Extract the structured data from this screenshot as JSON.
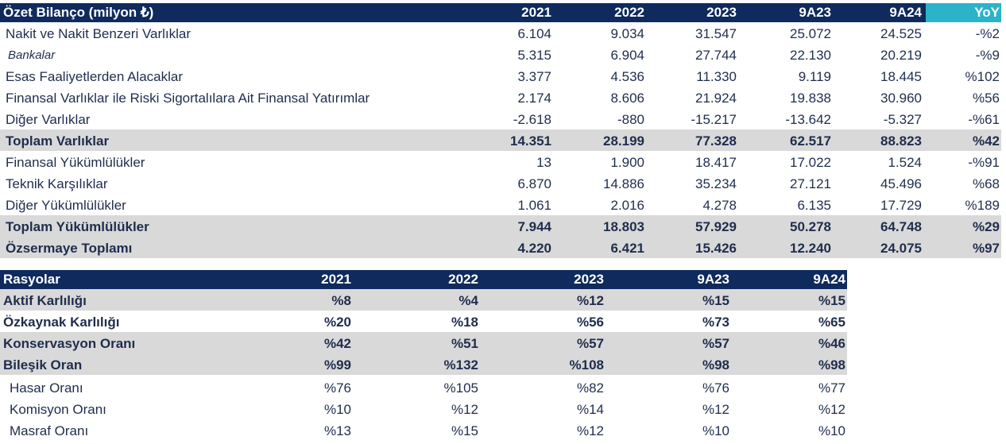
{
  "balance": {
    "header": [
      "Özet Bilanço (milyon ₺)",
      "2021",
      "2022",
      "2023",
      "9A23",
      "9A24",
      "YoY"
    ],
    "rows": [
      {
        "label": "Nakit ve Nakit Benzeri Varlıklar",
        "vals": [
          "6.104",
          "9.034",
          "31.547",
          "25.072",
          "24.525",
          "-%2"
        ]
      },
      {
        "label": "Bankalar",
        "vals": [
          "5.315",
          "6.904",
          "27.744",
          "22.130",
          "20.219",
          "-%9"
        ]
      },
      {
        "label": "Esas Faaliyetlerden Alacaklar",
        "vals": [
          "3.377",
          "4.536",
          "11.330",
          "9.119",
          "18.445",
          "%102"
        ]
      },
      {
        "label": "Finansal Varlıklar ile Riski Sigortalılara Ait Finansal Yatırımlar",
        "vals": [
          "2.174",
          "8.606",
          "21.924",
          "19.838",
          "30.960",
          "%56"
        ]
      },
      {
        "label": "Diğer Varlıklar",
        "vals": [
          "-2.618",
          "-880",
          "-15.217",
          "-13.642",
          "-5.327",
          "-%61"
        ]
      },
      {
        "label": "Toplam Varlıklar",
        "vals": [
          "14.351",
          "28.199",
          "77.328",
          "62.517",
          "88.823",
          "%42"
        ]
      },
      {
        "label": "Finansal Yükümlülükler",
        "vals": [
          "13",
          "1.900",
          "18.417",
          "17.022",
          "1.524",
          "-%91"
        ]
      },
      {
        "label": "Teknik Karşılıklar",
        "vals": [
          "6.870",
          "14.886",
          "35.234",
          "27.121",
          "45.496",
          "%68"
        ]
      },
      {
        "label": "Diğer Yükümlülükler",
        "vals": [
          "1.061",
          "2.016",
          "4.278",
          "6.135",
          "17.729",
          "%189"
        ]
      },
      {
        "label": "Toplam Yükümlülükler",
        "vals": [
          "7.944",
          "18.803",
          "57.929",
          "50.278",
          "64.748",
          "%29"
        ]
      },
      {
        "label": "Özsermaye Toplamı",
        "vals": [
          "4.220",
          "6.421",
          "15.426",
          "12.240",
          "24.075",
          "%97"
        ]
      }
    ]
  },
  "ratios": {
    "header": [
      "Rasyolar",
      "2021",
      "2022",
      "2023",
      "9A23",
      "9A24"
    ],
    "rows": [
      {
        "label": "Aktif Karlılığı",
        "vals": [
          "%8",
          "%4",
          "%12",
          "%15",
          "%15"
        ]
      },
      {
        "label": "Özkaynak Karlılığı",
        "vals": [
          "%20",
          "%18",
          "%56",
          "%73",
          "%65"
        ]
      },
      {
        "label": "Konservasyon Oranı",
        "vals": [
          "%42",
          "%51",
          "%57",
          "%57",
          "%46"
        ]
      },
      {
        "label": "Bileşik Oran",
        "vals": [
          "%99",
          "%132",
          "%108",
          "%98",
          "%98"
        ]
      },
      {
        "label": "Hasar Oranı",
        "vals": [
          "%76",
          "%105",
          "%82",
          "%76",
          "%77"
        ]
      },
      {
        "label": "Komisyon Oranı",
        "vals": [
          "%10",
          "%12",
          "%14",
          "%12",
          "%12"
        ]
      },
      {
        "label": "Masraf Oranı",
        "vals": [
          "%13",
          "%15",
          "%12",
          "%10",
          "%10"
        ]
      }
    ]
  },
  "colors": {
    "header_bg": "#0f2a5c",
    "yoy_bg": "#2bb3c9",
    "highlight": "#d9d9d9",
    "text": "#1f2d4d"
  }
}
